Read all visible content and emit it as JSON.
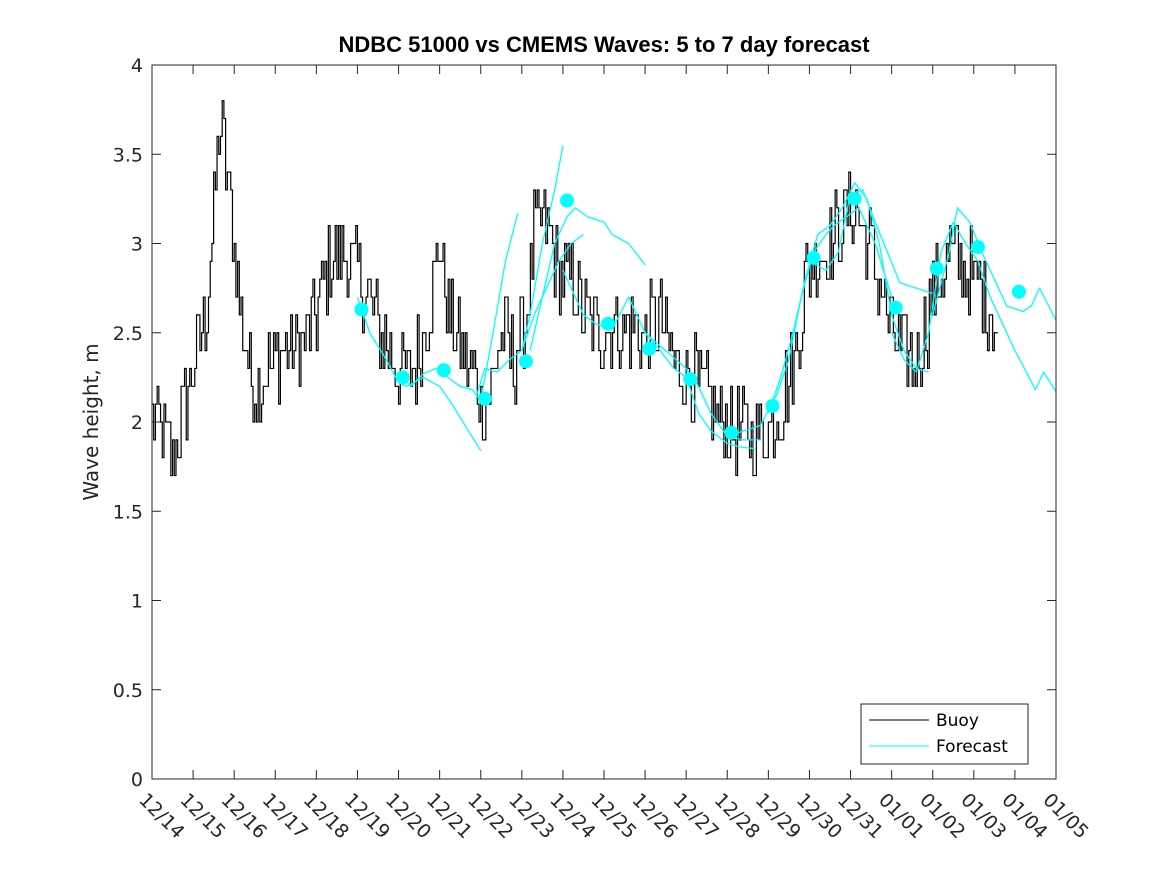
{
  "chart_data": {
    "type": "line",
    "title": "NDBC 51000 vs CMEMS Waves: 5 to 7 day forecast",
    "xlabel": "",
    "ylabel": "Wave height, m",
    "ylim": [
      0,
      4
    ],
    "yticks": [
      0,
      0.5,
      1,
      1.5,
      2,
      2.5,
      3,
      3.5,
      4
    ],
    "ytick_labels": [
      "0",
      "0.5",
      "1",
      "1.5",
      "2",
      "2.5",
      "3",
      "3.5",
      "4"
    ],
    "xlim": [
      0,
      22
    ],
    "xtick_labels": [
      "12/14",
      "12/15",
      "12/16",
      "12/17",
      "12/18",
      "12/19",
      "12/20",
      "12/21",
      "12/22",
      "12/23",
      "12/24",
      "12/25",
      "12/26",
      "12/27",
      "12/28",
      "12/29",
      "12/30",
      "12/31",
      "01/01",
      "01/02",
      "01/03",
      "01/04",
      "01/05"
    ],
    "legend": {
      "location": "bottom-right",
      "entries": [
        "Buoy",
        "Forecast"
      ]
    },
    "colors": {
      "buoy": "#000000",
      "forecast": "#00ffff",
      "axes": "#262626"
    },
    "buoy_anchors": [
      [
        0,
        2.05
      ],
      [
        0.5,
        1.8
      ],
      [
        1.0,
        2.3
      ],
      [
        1.3,
        2.6
      ],
      [
        1.55,
        3.3
      ],
      [
        1.65,
        3.7
      ],
      [
        1.9,
        3.2
      ],
      [
        2.2,
        2.5
      ],
      [
        2.5,
        2.2
      ],
      [
        2.8,
        2.3
      ],
      [
        3.2,
        2.4
      ],
      [
        3.6,
        2.4
      ],
      [
        4.0,
        2.6
      ],
      [
        4.3,
        2.9
      ],
      [
        4.6,
        2.95
      ],
      [
        5.0,
        2.85
      ],
      [
        5.4,
        2.6
      ],
      [
        5.8,
        2.4
      ],
      [
        6.1,
        2.25
      ],
      [
        6.4,
        2.3
      ],
      [
        6.8,
        2.7
      ],
      [
        7.0,
        3.0
      ],
      [
        7.2,
        2.6
      ],
      [
        7.5,
        2.4
      ],
      [
        7.8,
        2.3
      ],
      [
        8.0,
        2.1
      ],
      [
        8.2,
        2.15
      ],
      [
        8.5,
        2.5
      ],
      [
        8.8,
        2.35
      ],
      [
        9.1,
        2.55
      ],
      [
        9.3,
        3.05
      ],
      [
        9.6,
        3.1
      ],
      [
        9.9,
        2.8
      ],
      [
        10.2,
        2.8
      ],
      [
        10.5,
        2.6
      ],
      [
        10.8,
        2.5
      ],
      [
        11.2,
        2.55
      ],
      [
        11.5,
        2.5
      ],
      [
        11.7,
        2.55
      ],
      [
        12.0,
        2.45
      ],
      [
        12.3,
        2.6
      ],
      [
        12.5,
        2.45
      ],
      [
        12.8,
        2.3
      ],
      [
        13.1,
        2.25
      ],
      [
        13.4,
        2.15
      ],
      [
        13.7,
        2.05
      ],
      [
        14.0,
        2.0
      ],
      [
        14.3,
        1.95
      ],
      [
        14.7,
        1.9
      ],
      [
        15.0,
        2.0
      ],
      [
        15.3,
        2.1
      ],
      [
        15.6,
        2.3
      ],
      [
        15.9,
        2.8
      ],
      [
        16.2,
        2.95
      ],
      [
        16.5,
        3.0
      ],
      [
        16.8,
        3.1
      ],
      [
        17.1,
        3.2
      ],
      [
        17.4,
        3.0
      ],
      [
        17.7,
        2.8
      ],
      [
        18.0,
        2.5
      ],
      [
        18.3,
        2.35
      ],
      [
        18.6,
        2.35
      ],
      [
        19.0,
        2.7
      ],
      [
        19.4,
        2.95
      ],
      [
        19.7,
        2.9
      ],
      [
        20.0,
        2.8
      ],
      [
        20.3,
        2.7
      ],
      [
        20.5,
        2.6
      ],
      [
        20.6,
        2.4
      ]
    ],
    "forecast_segments": [
      [
        [
          5.0,
          2.7
        ],
        [
          5.3,
          2.5
        ],
        [
          5.7,
          2.35
        ],
        [
          6.0,
          2.22
        ],
        [
          6.2,
          2.2
        ],
        [
          6.6,
          2.25
        ],
        [
          7.0,
          2.2
        ],
        [
          7.3,
          2.1
        ],
        [
          7.7,
          1.95
        ],
        [
          8.0,
          1.84
        ]
      ],
      [
        [
          6.0,
          2.28
        ],
        [
          6.3,
          2.2
        ],
        [
          6.6,
          2.27
        ],
        [
          6.9,
          2.3
        ],
        [
          7.2,
          2.25
        ],
        [
          7.5,
          2.2
        ],
        [
          7.8,
          2.18
        ],
        [
          8.0,
          2.12
        ],
        [
          8.3,
          2.5
        ],
        [
          8.6,
          2.9
        ],
        [
          8.9,
          3.17
        ]
      ],
      [
        [
          7.9,
          2.15
        ],
        [
          8.1,
          2.3
        ],
        [
          8.4,
          2.28
        ],
        [
          8.7,
          2.35
        ],
        [
          9.0,
          2.4
        ],
        [
          9.2,
          2.6
        ],
        [
          9.5,
          3.0
        ],
        [
          9.8,
          3.3
        ],
        [
          10.0,
          3.55
        ]
      ],
      [
        [
          9.0,
          2.4
        ],
        [
          9.3,
          2.6
        ],
        [
          9.6,
          2.75
        ],
        [
          9.9,
          2.9
        ],
        [
          10.2,
          3.0
        ],
        [
          10.5,
          3.05
        ]
      ],
      [
        [
          9.2,
          2.4
        ],
        [
          9.5,
          2.7
        ],
        [
          9.8,
          3.0
        ],
        [
          10.1,
          3.15
        ],
        [
          10.3,
          3.2
        ],
        [
          10.6,
          3.15
        ],
        [
          11.0,
          3.12
        ],
        [
          11.2,
          3.05
        ],
        [
          11.6,
          3.0
        ],
        [
          12.0,
          2.88
        ]
      ],
      [
        [
          10.0,
          2.85
        ],
        [
          10.5,
          2.6
        ],
        [
          10.8,
          2.55
        ],
        [
          11.2,
          2.52
        ],
        [
          11.6,
          2.7
        ],
        [
          12.0,
          2.5
        ],
        [
          12.3,
          2.42
        ],
        [
          12.7,
          2.3
        ],
        [
          13.0,
          2.25
        ],
        [
          13.3,
          2.05
        ],
        [
          13.6,
          1.95
        ],
        [
          14.0,
          1.88
        ],
        [
          14.3,
          1.86
        ],
        [
          14.7,
          1.85
        ]
      ],
      [
        [
          12.0,
          2.5
        ],
        [
          12.5,
          2.4
        ],
        [
          13.0,
          2.3
        ],
        [
          13.3,
          2.2
        ],
        [
          13.6,
          2.05
        ],
        [
          14.0,
          1.92
        ],
        [
          14.4,
          1.9
        ],
        [
          14.8,
          1.9
        ]
      ],
      [
        [
          14.0,
          1.92
        ],
        [
          14.4,
          1.95
        ],
        [
          14.8,
          1.98
        ],
        [
          15.2,
          2.15
        ],
        [
          15.5,
          2.35
        ],
        [
          15.8,
          2.7
        ],
        [
          16.1,
          2.95
        ],
        [
          16.4,
          3.05
        ],
        [
          16.6,
          3.1
        ],
        [
          16.9,
          3.15
        ],
        [
          17.2,
          3.2
        ],
        [
          17.6,
          3.0
        ],
        [
          18.0,
          2.7
        ]
      ],
      [
        [
          15.0,
          2.05
        ],
        [
          15.3,
          2.25
        ],
        [
          15.6,
          2.5
        ],
        [
          15.9,
          2.8
        ],
        [
          16.2,
          3.05
        ],
        [
          16.5,
          3.1
        ],
        [
          16.8,
          3.2
        ],
        [
          17.1,
          3.34
        ],
        [
          17.4,
          3.25
        ],
        [
          17.7,
          3.0
        ],
        [
          18.0,
          2.6
        ],
        [
          18.3,
          2.4
        ],
        [
          18.6,
          2.3
        ],
        [
          18.9,
          2.28
        ]
      ],
      [
        [
          16.0,
          2.9
        ],
        [
          16.4,
          2.85
        ],
        [
          16.7,
          2.95
        ],
        [
          17.0,
          3.28
        ],
        [
          17.3,
          3.3
        ],
        [
          17.6,
          3.12
        ],
        [
          17.9,
          2.95
        ],
        [
          18.2,
          2.78
        ],
        [
          18.6,
          2.75
        ],
        [
          19.0,
          2.72
        ]
      ],
      [
        [
          18.0,
          2.5
        ],
        [
          18.3,
          2.35
        ],
        [
          18.6,
          2.28
        ],
        [
          18.9,
          2.5
        ],
        [
          19.2,
          2.95
        ],
        [
          19.5,
          3.12
        ],
        [
          19.8,
          3.0
        ],
        [
          20.1,
          2.9
        ],
        [
          20.4,
          2.7
        ],
        [
          20.7,
          2.55
        ],
        [
          21.0,
          2.4
        ],
        [
          21.3,
          2.27
        ],
        [
          21.5,
          2.18
        ],
        [
          21.7,
          2.28
        ],
        [
          22.0,
          2.17
        ]
      ],
      [
        [
          19.0,
          2.6
        ],
        [
          19.4,
          2.95
        ],
        [
          19.6,
          3.2
        ],
        [
          19.9,
          3.12
        ],
        [
          20.2,
          2.95
        ],
        [
          20.5,
          2.8
        ],
        [
          20.8,
          2.65
        ],
        [
          21.2,
          2.62
        ],
        [
          21.4,
          2.65
        ],
        [
          21.6,
          2.75
        ],
        [
          22.0,
          2.57
        ]
      ]
    ],
    "forecast_markers": [
      [
        5.1,
        2.63
      ],
      [
        6.1,
        2.25
      ],
      [
        7.1,
        2.29
      ],
      [
        8.1,
        2.13
      ],
      [
        9.1,
        2.34
      ],
      [
        10.1,
        3.24
      ],
      [
        11.1,
        2.55
      ],
      [
        12.1,
        2.41
      ],
      [
        13.1,
        2.24
      ],
      [
        14.1,
        1.94
      ],
      [
        15.1,
        2.09
      ],
      [
        16.1,
        2.92
      ],
      [
        17.1,
        3.25
      ],
      [
        18.1,
        2.64
      ],
      [
        19.1,
        2.86
      ],
      [
        20.1,
        2.98
      ],
      [
        21.1,
        2.73
      ]
    ]
  }
}
